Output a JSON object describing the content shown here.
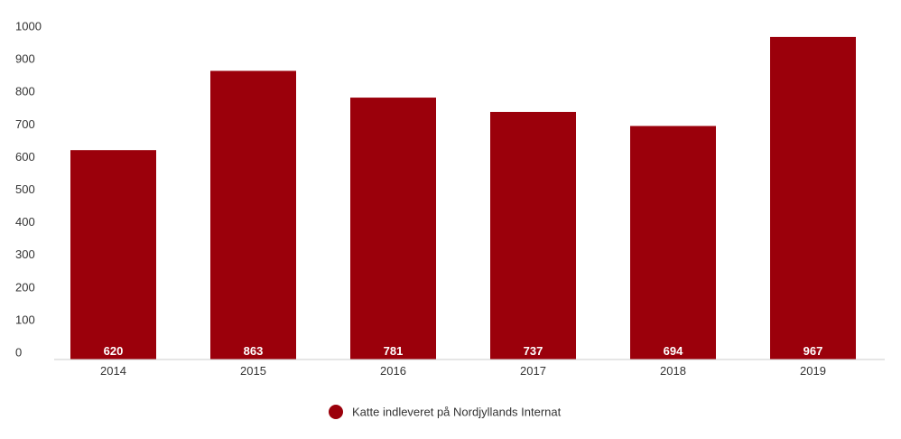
{
  "chart_data": {
    "type": "bar",
    "categories": [
      "2014",
      "2015",
      "2016",
      "2017",
      "2018",
      "2019"
    ],
    "series": [
      {
        "name": "Katte indleveret på Nordjyllands Internat",
        "values": [
          620,
          863,
          781,
          737,
          694,
          967
        ],
        "data_labels": [
          "620",
          "863",
          "781",
          "737",
          "694",
          "967"
        ]
      }
    ],
    "y_ticks": [
      "0",
      "100",
      "200",
      "300",
      "400",
      "500",
      "600",
      "700",
      "800",
      "900",
      "1000"
    ],
    "ylim": [
      0,
      1000
    ],
    "title": "",
    "xlabel": "",
    "ylabel": "",
    "grid": false,
    "legend": "bottom-center",
    "colors": {
      "bar": "#9b000b",
      "axis": "#cccccc",
      "text": "#333333",
      "label": "#ffffff"
    }
  }
}
